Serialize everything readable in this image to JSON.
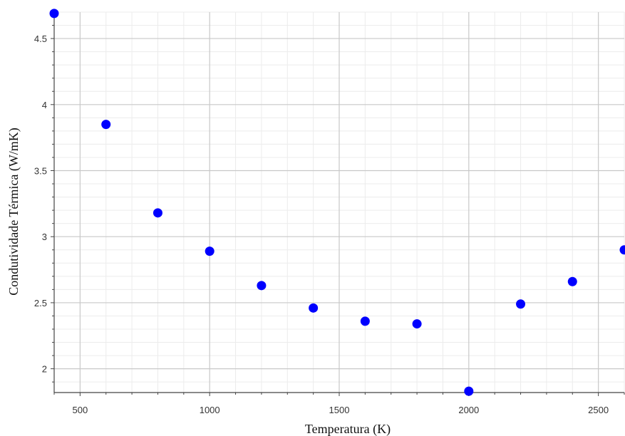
{
  "chart_data": {
    "type": "scatter",
    "title": "",
    "xlabel": "Temperatura (K)",
    "ylabel": "Condutividade Térmica (W/mK)",
    "xlim": [
      400,
      2600
    ],
    "ylim": [
      1.82,
      4.7
    ],
    "x_ticks": [
      500,
      1000,
      1500,
      2000,
      2500
    ],
    "y_ticks": [
      2,
      2.5,
      3,
      3.5,
      4,
      4.5
    ],
    "x_tick_labels": [
      "500",
      "1000",
      "1500",
      "2000",
      "2500"
    ],
    "y_tick_labels": [
      "2",
      "2.5",
      "3",
      "3.5",
      "4",
      "4.5"
    ],
    "grid": true,
    "marker_color": "#0000ff",
    "series": [
      {
        "x": [
          400,
          600,
          800,
          1000,
          1200,
          1400,
          1600,
          1800,
          2000,
          2200,
          2400,
          2600
        ],
        "y": [
          4.69,
          3.85,
          3.18,
          2.89,
          2.63,
          2.46,
          2.36,
          2.34,
          1.83,
          2.49,
          2.66,
          2.9
        ]
      }
    ]
  }
}
